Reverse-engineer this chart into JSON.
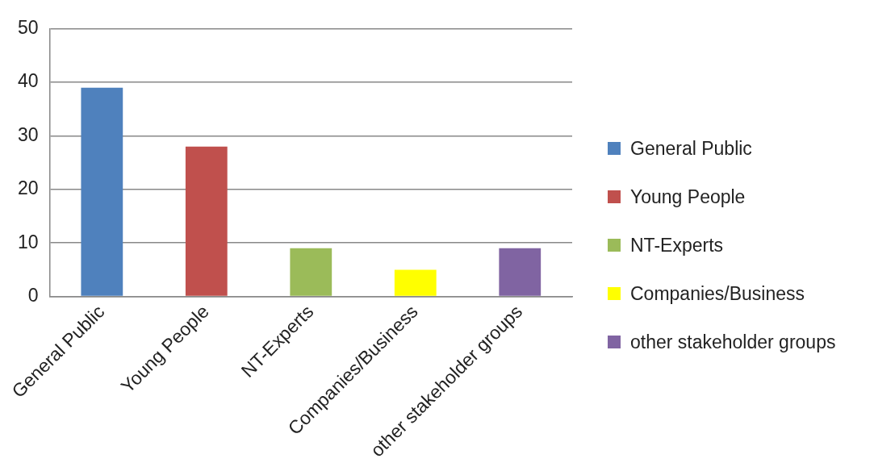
{
  "chart_data": {
    "type": "bar",
    "categories": [
      "General Public",
      "Young People",
      "NT-Experts",
      "Companies/Business",
      "other stakeholder groups"
    ],
    "series": [
      {
        "name": "General Public",
        "color": "#4f81bd",
        "values": [
          39,
          null,
          null,
          null,
          null
        ]
      },
      {
        "name": "Young People",
        "color": "#c0504d",
        "values": [
          null,
          28,
          null,
          null,
          null
        ]
      },
      {
        "name": "NT-Experts",
        "color": "#9bbb59",
        "values": [
          null,
          null,
          9,
          null,
          null
        ]
      },
      {
        "name": "Companies/Business",
        "color": "#ffff00",
        "values": [
          null,
          null,
          null,
          5,
          null
        ]
      },
      {
        "name": "other stakeholder groups",
        "color": "#8064a2",
        "values": [
          null,
          null,
          null,
          null,
          9
        ]
      }
    ],
    "ylim": [
      0,
      50
    ],
    "yticks": [
      0,
      10,
      20,
      30,
      40,
      50
    ],
    "grid": "y",
    "legend": "right"
  }
}
